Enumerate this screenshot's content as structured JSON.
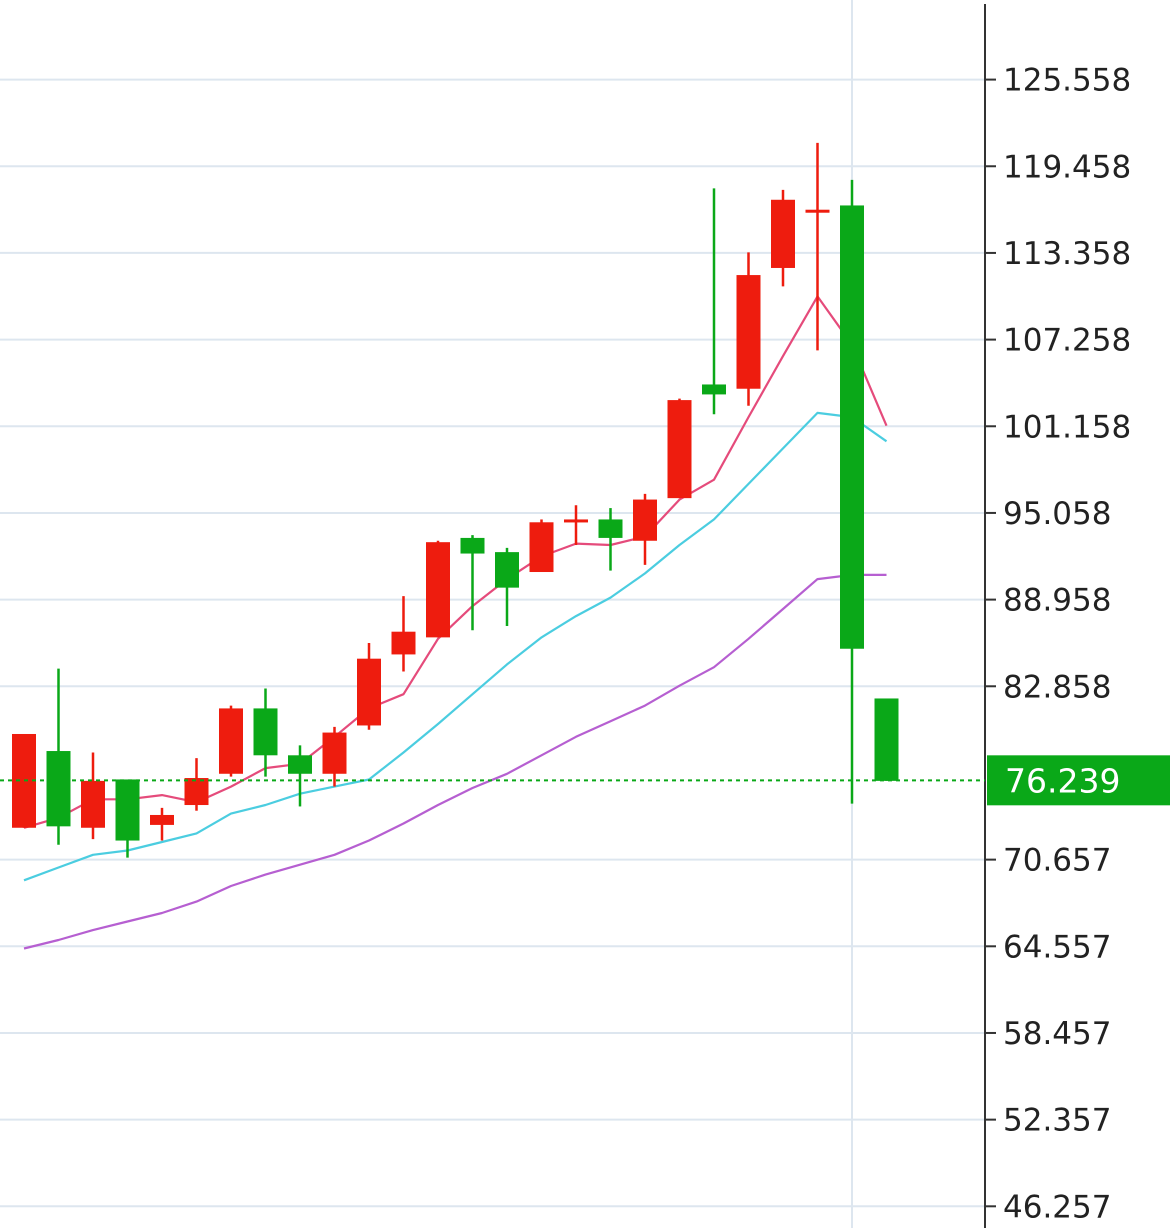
{
  "chart_data": {
    "type": "candlestick",
    "title": "",
    "xlabel": "",
    "ylabel": "",
    "ylim": [
      44.73,
      131.16
    ],
    "y_ticks": [
      "125.558",
      "119.458",
      "113.358",
      "107.258",
      "101.158",
      "95.058",
      "88.958",
      "82.858",
      "70.657",
      "64.557",
      "58.457",
      "52.357",
      "46.257"
    ],
    "y_tick_values": [
      125.558,
      119.458,
      113.358,
      107.258,
      101.158,
      95.058,
      88.958,
      82.858,
      70.657,
      64.557,
      58.457,
      52.357,
      46.257
    ],
    "grid": true,
    "up_color": "#ee1c0e",
    "down_color": "#0aa818",
    "current_price": {
      "label": "76.239",
      "value": 76.239,
      "color": "#0aa818"
    },
    "candles": [
      {
        "open": 72.9,
        "close": 79.5,
        "high": 79.5,
        "low": 72.9
      },
      {
        "open": 78.3,
        "close": 73.0,
        "high": 84.1,
        "low": 71.7
      },
      {
        "open": 72.9,
        "close": 76.2,
        "high": 78.2,
        "low": 72.1
      },
      {
        "open": 76.3,
        "close": 72.0,
        "high": 76.3,
        "low": 70.8
      },
      {
        "open": 73.1,
        "close": 73.8,
        "high": 74.3,
        "low": 72.0
      },
      {
        "open": 74.5,
        "close": 76.4,
        "high": 77.8,
        "low": 74.1
      },
      {
        "open": 76.7,
        "close": 81.3,
        "high": 81.5,
        "low": 76.5
      },
      {
        "open": 81.3,
        "close": 78.0,
        "high": 82.7,
        "low": 76.5
      },
      {
        "open": 78.0,
        "close": 76.7,
        "high": 78.7,
        "low": 74.4
      },
      {
        "open": 76.7,
        "close": 79.6,
        "high": 80.0,
        "low": 75.8
      },
      {
        "open": 80.1,
        "close": 84.8,
        "high": 85.9,
        "low": 79.8
      },
      {
        "open": 85.1,
        "close": 86.7,
        "high": 89.2,
        "low": 83.9
      },
      {
        "open": 86.3,
        "close": 93.0,
        "high": 93.1,
        "low": 86.3
      },
      {
        "open": 93.3,
        "close": 92.2,
        "high": 93.5,
        "low": 86.8
      },
      {
        "open": 92.3,
        "close": 89.8,
        "high": 92.6,
        "low": 87.1
      },
      {
        "open": 90.9,
        "close": 94.4,
        "high": 94.6,
        "low": 90.9
      },
      {
        "open": 94.6,
        "close": 94.6,
        "high": 95.6,
        "low": 92.8
      },
      {
        "open": 94.6,
        "close": 93.3,
        "high": 95.4,
        "low": 91.0
      },
      {
        "open": 93.1,
        "close": 96.0,
        "high": 96.4,
        "low": 91.4
      },
      {
        "open": 96.1,
        "close": 103.0,
        "high": 103.1,
        "low": 96.1
      },
      {
        "open": 104.1,
        "close": 103.4,
        "high": 117.9,
        "low": 102.0
      },
      {
        "open": 103.8,
        "close": 111.8,
        "high": 113.4,
        "low": 102.6
      },
      {
        "open": 112.3,
        "close": 117.1,
        "high": 117.8,
        "low": 111.0
      },
      {
        "open": 116.4,
        "close": 116.4,
        "high": 121.1,
        "low": 106.5
      },
      {
        "open": 116.7,
        "close": 85.5,
        "high": 118.5,
        "low": 74.6
      },
      {
        "open": 82.0,
        "close": 76.2,
        "high": 82.0,
        "low": 76.2
      }
    ],
    "series": [
      {
        "color": "#e54b7b",
        "values": [
          72.9,
          73.6,
          74.9,
          74.9,
          75.2,
          74.7,
          75.8,
          77.1,
          77.4,
          79.3,
          81.3,
          82.3,
          86.2,
          88.5,
          90.4,
          92.0,
          92.9,
          92.8,
          93.4,
          96.0,
          97.4,
          101.8,
          106.1,
          110.3,
          106.9,
          101.2
        ]
      },
      {
        "color": "#4bcde0",
        "values": [
          69.2,
          70.1,
          71.0,
          71.3,
          71.9,
          72.5,
          73.9,
          74.5,
          75.3,
          75.8,
          76.3,
          78.2,
          80.2,
          82.3,
          84.4,
          86.3,
          87.8,
          89.1,
          90.8,
          92.8,
          94.6,
          97.1,
          99.6,
          102.1,
          101.8,
          100.1
        ]
      },
      {
        "color": "#b65fd1",
        "values": [
          64.4,
          65.0,
          65.7,
          66.3,
          66.9,
          67.7,
          68.8,
          69.6,
          70.3,
          71.0,
          72.0,
          73.2,
          74.5,
          75.7,
          76.7,
          78.0,
          79.3,
          80.4,
          81.5,
          82.9,
          84.2,
          86.2,
          88.3,
          90.4,
          90.7,
          90.7
        ]
      }
    ]
  }
}
